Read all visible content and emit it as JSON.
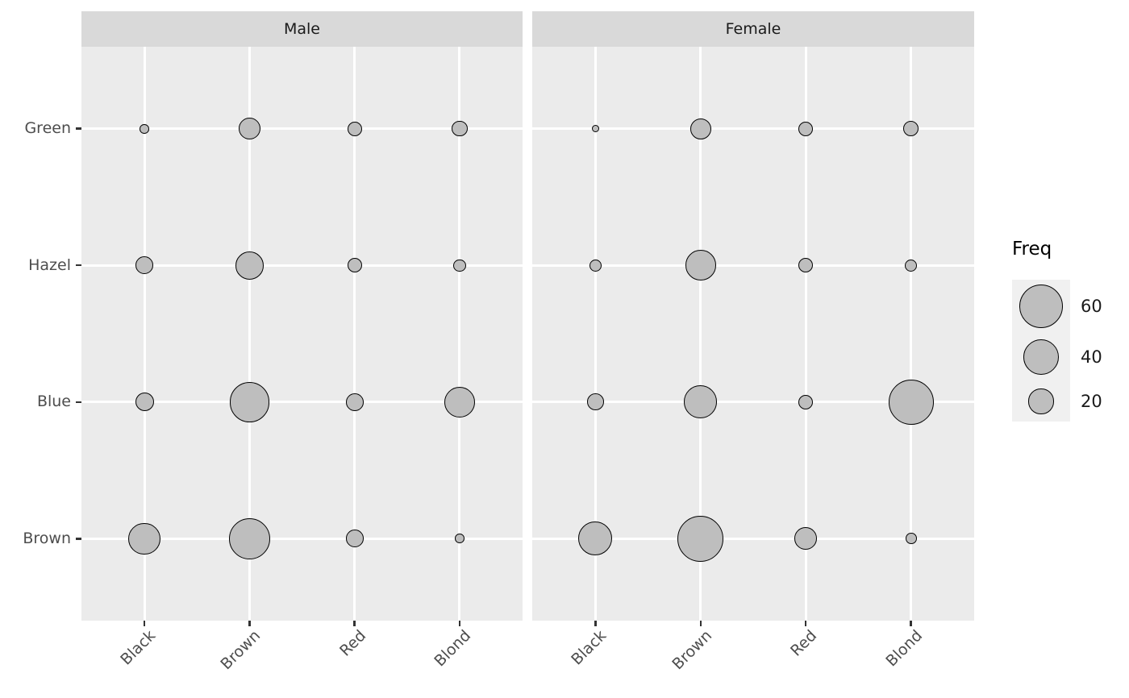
{
  "legend": {
    "title": "Freq",
    "entries": [
      {
        "label": "60",
        "value": 60
      },
      {
        "label": "40",
        "value": 40
      },
      {
        "label": "20",
        "value": 20
      }
    ]
  },
  "colors": {
    "panel_background": "#ebebeb",
    "strip_background": "#d9d9d9",
    "gridline": "#ffffff",
    "bubble_fill": "#bebebe",
    "bubble_stroke": "#000000",
    "axis_text": "#4d4d4d",
    "strip_text": "#1a1a1a",
    "legend_text": "#1a1a1a",
    "tick_mark": "#333333",
    "legend_key_background": "#f0f0f0"
  },
  "chart_data": {
    "type": "scatter",
    "subtype": "bubble",
    "title": "",
    "xlabel": "",
    "ylabel": "",
    "size_label": "Freq",
    "facets": [
      "Male",
      "Female"
    ],
    "x_categories": [
      "Black",
      "Brown",
      "Red",
      "Blond"
    ],
    "y_categories_top_to_bottom": [
      "Green",
      "Hazel",
      "Blue",
      "Brown"
    ],
    "grid": "on",
    "legend_position": "right",
    "size_scale": {
      "transform": "sqrt-area",
      "domain": [
        2,
        66
      ],
      "legend_values": [
        60,
        40,
        20
      ]
    },
    "series": [
      {
        "name": "Male",
        "rows": {
          "Green": [
            3,
            15,
            7,
            8
          ],
          "Hazel": [
            10,
            25,
            7,
            5
          ],
          "Blue": [
            11,
            50,
            10,
            30
          ],
          "Brown": [
            32,
            53,
            10,
            3
          ]
        }
      },
      {
        "name": "Female",
        "rows": {
          "Green": [
            2,
            14,
            7,
            8
          ],
          "Hazel": [
            5,
            29,
            7,
            5
          ],
          "Blue": [
            9,
            34,
            7,
            64
          ],
          "Brown": [
            36,
            66,
            16,
            4
          ]
        }
      }
    ]
  }
}
